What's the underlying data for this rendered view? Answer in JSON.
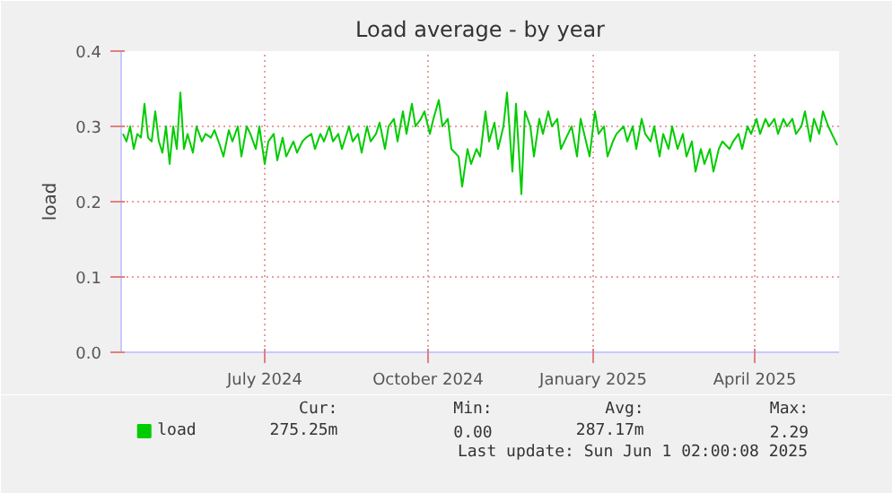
{
  "chart_data": {
    "type": "line",
    "title": "Load average - by year",
    "ylabel": "load",
    "xlim": [
      "2024-04-27",
      "2025-06-01"
    ],
    "xticks": [
      {
        "value": "2024-07-16",
        "label": "July 2024"
      },
      {
        "value": "2024-10-15",
        "label": "October 2024"
      },
      {
        "value": "2025-01-15",
        "label": "January 2025"
      },
      {
        "value": "2025-04-15",
        "label": "April 2025"
      }
    ],
    "ylim": [
      0,
      0.4
    ],
    "yticks": [
      {
        "value": 0,
        "label": "0.0"
      },
      {
        "value": 0.1,
        "label": "0.1"
      },
      {
        "value": 0.2,
        "label": "0.2"
      },
      {
        "value": 0.3,
        "label": "0.3"
      },
      {
        "value": 0.4,
        "label": "0.4"
      }
    ],
    "grid": true,
    "legend": "bottom left",
    "marker": "none",
    "line_style": "solid",
    "x": [
      "2024-04-28",
      "2024-04-30",
      "2024-05-02",
      "2024-05-04",
      "2024-05-06",
      "2024-05-08",
      "2024-05-10",
      "2024-05-12",
      "2024-05-14",
      "2024-05-16",
      "2024-05-18",
      "2024-05-20",
      "2024-05-22",
      "2024-05-24",
      "2024-05-26",
      "2024-05-28",
      "2024-05-30",
      "2024-06-01",
      "2024-06-03",
      "2024-06-06",
      "2024-06-08",
      "2024-06-11",
      "2024-06-13",
      "2024-06-16",
      "2024-06-18",
      "2024-06-21",
      "2024-06-23",
      "2024-06-26",
      "2024-06-28",
      "2024-07-01",
      "2024-07-03",
      "2024-07-06",
      "2024-07-08",
      "2024-07-11",
      "2024-07-13",
      "2024-07-16",
      "2024-07-18",
      "2024-07-21",
      "2024-07-23",
      "2024-07-26",
      "2024-07-28",
      "2024-08-01",
      "2024-08-03",
      "2024-08-06",
      "2024-08-08",
      "2024-08-11",
      "2024-08-13",
      "2024-08-16",
      "2024-08-18",
      "2024-08-21",
      "2024-08-23",
      "2024-08-26",
      "2024-08-28",
      "2024-09-01",
      "2024-09-03",
      "2024-09-06",
      "2024-09-08",
      "2024-09-11",
      "2024-09-13",
      "2024-09-16",
      "2024-09-18",
      "2024-09-21",
      "2024-09-23",
      "2024-09-26",
      "2024-09-28",
      "2024-10-01",
      "2024-10-03",
      "2024-10-06",
      "2024-10-08",
      "2024-10-11",
      "2024-10-13",
      "2024-10-16",
      "2024-10-18",
      "2024-10-21",
      "2024-10-23",
      "2024-10-26",
      "2024-10-28",
      "2024-11-01",
      "2024-11-03",
      "2024-11-06",
      "2024-11-08",
      "2024-11-11",
      "2024-11-13",
      "2024-11-16",
      "2024-11-18",
      "2024-11-21",
      "2024-11-23",
      "2024-11-26",
      "2024-11-28",
      "2024-12-01",
      "2024-12-03",
      "2024-12-06",
      "2024-12-08",
      "2024-12-11",
      "2024-12-13",
      "2024-12-16",
      "2024-12-18",
      "2024-12-21",
      "2024-12-23",
      "2024-12-26",
      "2024-12-28",
      "2025-01-01",
      "2025-01-03",
      "2025-01-06",
      "2025-01-08",
      "2025-01-11",
      "2025-01-13",
      "2025-01-16",
      "2025-01-18",
      "2025-01-21",
      "2025-01-23",
      "2025-01-26",
      "2025-01-28",
      "2025-02-01",
      "2025-02-03",
      "2025-02-06",
      "2025-02-08",
      "2025-02-11",
      "2025-02-13",
      "2025-02-16",
      "2025-02-18",
      "2025-02-21",
      "2025-02-23",
      "2025-02-26",
      "2025-02-28",
      "2025-03-01",
      "2025-03-03",
      "2025-03-06",
      "2025-03-08",
      "2025-03-11",
      "2025-03-13",
      "2025-03-16",
      "2025-03-18",
      "2025-03-21",
      "2025-03-23",
      "2025-03-26",
      "2025-03-28",
      "2025-04-01",
      "2025-04-03",
      "2025-04-06",
      "2025-04-08",
      "2025-04-11",
      "2025-04-13",
      "2025-04-16",
      "2025-04-18",
      "2025-04-21",
      "2025-04-23",
      "2025-04-26",
      "2025-04-28",
      "2025-05-01",
      "2025-05-03",
      "2025-05-06",
      "2025-05-08",
      "2025-05-11",
      "2025-05-13",
      "2025-05-16",
      "2025-05-18",
      "2025-05-21",
      "2025-05-23",
      "2025-05-26",
      "2025-05-28",
      "2025-05-31"
    ],
    "series": [
      {
        "name": "load",
        "color": "#00cc00",
        "values": [
          0.29,
          0.28,
          0.3,
          0.27,
          0.29,
          0.285,
          0.33,
          0.285,
          0.28,
          0.32,
          0.28,
          0.265,
          0.3,
          0.25,
          0.3,
          0.27,
          0.345,
          0.27,
          0.29,
          0.265,
          0.3,
          0.28,
          0.29,
          0.285,
          0.295,
          0.275,
          0.26,
          0.295,
          0.28,
          0.3,
          0.26,
          0.3,
          0.29,
          0.27,
          0.3,
          0.25,
          0.28,
          0.29,
          0.255,
          0.285,
          0.26,
          0.28,
          0.265,
          0.28,
          0.285,
          0.29,
          0.27,
          0.29,
          0.28,
          0.3,
          0.28,
          0.29,
          0.27,
          0.3,
          0.28,
          0.29,
          0.265,
          0.3,
          0.28,
          0.29,
          0.305,
          0.27,
          0.3,
          0.31,
          0.28,
          0.32,
          0.29,
          0.33,
          0.3,
          0.31,
          0.32,
          0.29,
          0.31,
          0.335,
          0.3,
          0.31,
          0.27,
          0.26,
          0.22,
          0.27,
          0.25,
          0.27,
          0.26,
          0.32,
          0.28,
          0.305,
          0.27,
          0.3,
          0.345,
          0.24,
          0.33,
          0.21,
          0.32,
          0.3,
          0.26,
          0.31,
          0.29,
          0.32,
          0.3,
          0.31,
          0.27,
          0.29,
          0.3,
          0.26,
          0.31,
          0.28,
          0.26,
          0.32,
          0.29,
          0.3,
          0.26,
          0.28,
          0.29,
          0.3,
          0.28,
          0.3,
          0.27,
          0.31,
          0.29,
          0.28,
          0.3,
          0.26,
          0.29,
          0.27,
          0.3,
          0.29,
          0.27,
          0.29,
          0.26,
          0.28,
          0.24,
          0.27,
          0.25,
          0.27,
          0.24,
          0.27,
          0.28,
          0.27,
          0.28,
          0.29,
          0.27,
          0.3,
          0.29,
          0.31,
          0.29,
          0.31,
          0.3,
          0.31,
          0.29,
          0.31,
          0.3,
          0.31,
          0.29,
          0.3,
          0.32,
          0.28,
          0.31,
          0.29,
          0.32,
          0.3,
          0.29,
          0.275
        ]
      }
    ],
    "annotations": [
      "Cur:",
      "Min:",
      "Avg:",
      "Max:",
      "275.25m",
      "0.00",
      "287.17m",
      "2.29",
      "Last update: Sun Jun  1 02:00:08 2025"
    ]
  }
}
